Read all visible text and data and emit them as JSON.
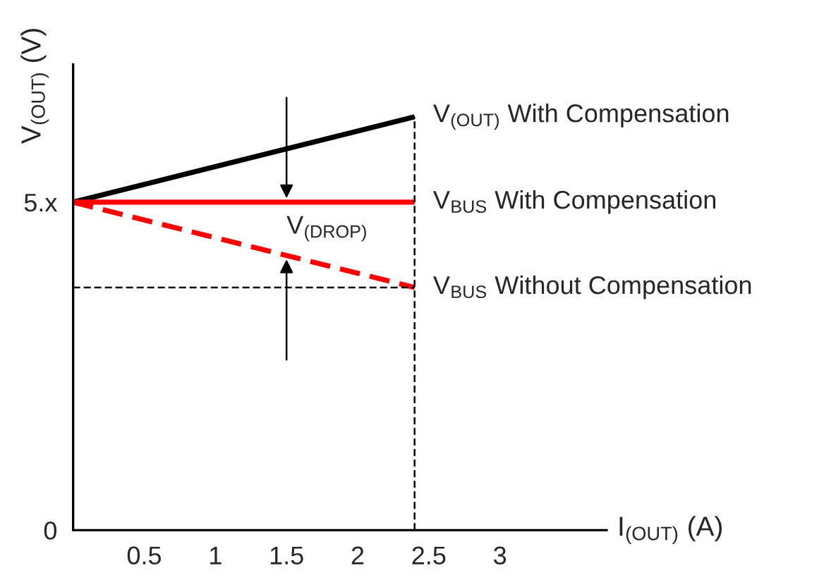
{
  "chart_data": {
    "type": "line",
    "x": [
      0,
      2.4
    ],
    "series": [
      {
        "name": "V$_{(OUT)}$ With Compensation",
        "color": "#000000",
        "values": [
          5,
          6.3
        ],
        "line_style": "solid"
      },
      {
        "name": "V$_{BUS}$ With Compensation",
        "color": "#ff0000",
        "values": [
          5,
          5
        ],
        "line_style": "solid"
      },
      {
        "name": "V$_{BUS}$ Without Compensation",
        "color": "#ff0000",
        "values": [
          5,
          3.7
        ],
        "line_style": "dashed"
      }
    ],
    "xlabel": "I$_{(OUT)}$ (A)",
    "ylabel": "V$_{(OUT)}$ (V)",
    "xlim": [
      0,
      3.75
    ],
    "xticks": [
      0.5,
      1,
      1.5,
      2,
      2.5,
      3
    ],
    "ylim": [
      0,
      7.1
    ],
    "yticks": [
      0,
      {
        "value": 5,
        "label": "5.x"
      }
    ],
    "ref_lines": [
      {
        "axis": "y",
        "value": 3.7,
        "color": "#000000",
        "line_style": "dashed"
      },
      {
        "axis": "x",
        "value": 2.4,
        "color": "#000000",
        "line_style": "dashed"
      }
    ],
    "annotations": [
      "V$_{(DROP)}$"
    ],
    "grid": false,
    "legend": false,
    "marker": "none"
  }
}
